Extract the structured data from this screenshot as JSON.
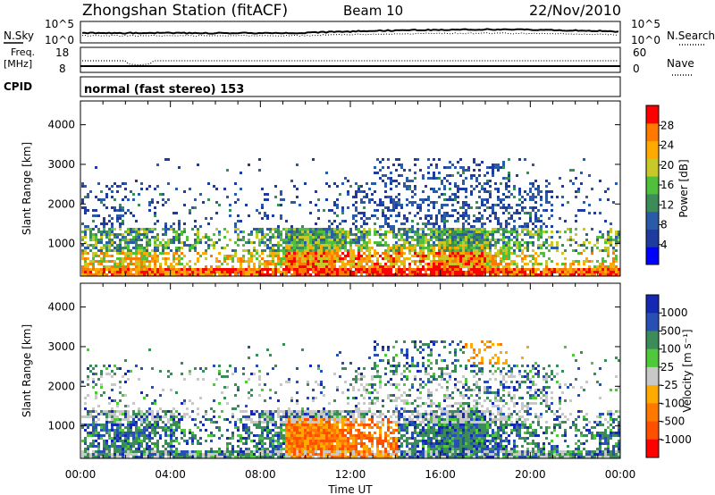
{
  "header": {
    "station": "Zhongshan Station (fitACF)",
    "beam": "Beam 10",
    "date": "22/Nov/2010"
  },
  "noise_panel": {
    "left_label": "N.Sky",
    "right_label": "N.Search",
    "left_ticks": [
      "10^5",
      "10^0"
    ],
    "right_ticks": [
      "10^5",
      "10^0"
    ]
  },
  "freq_panel": {
    "left_label": "Freq.",
    "left_unit": "[MHz]",
    "left_ticks": [
      "18",
      "8"
    ],
    "right_label": "Nave",
    "right_ticks": [
      "60",
      "0"
    ]
  },
  "cpid": {
    "label": "CPID",
    "value": "normal (fast stereo) 153"
  },
  "chart_data": [
    {
      "type": "heatmap",
      "title": "",
      "xlabel": "Time UT",
      "ylabel": "Slant Range [km]",
      "colorbar_label": "Power [dB]",
      "x_ticks": [
        "00:00",
        "04:00",
        "08:00",
        "12:00",
        "16:00",
        "20:00",
        "00:00"
      ],
      "y_ticks": [
        "1000",
        "2000",
        "3000",
        "4000"
      ],
      "ylim": [
        180,
        4600
      ],
      "colorbar_ticks": [
        "4",
        "8",
        "12",
        "16",
        "20",
        "24",
        "28"
      ],
      "colorbar_range": [
        0,
        32
      ],
      "colors": [
        "#0000ff",
        "#1e3ca0",
        "#2a5aa8",
        "#3c8c5a",
        "#50c03c",
        "#c8c828",
        "#ffaa00",
        "#ff7800",
        "#ff0000"
      ]
    },
    {
      "type": "heatmap",
      "title": "",
      "xlabel": "Time UT",
      "ylabel": "Slant Range [km]",
      "colorbar_label": "Velocity [m s⁻¹]",
      "x_ticks": [
        "00:00",
        "04:00",
        "08:00",
        "12:00",
        "16:00",
        "20:00",
        "00:00"
      ],
      "y_ticks": [
        "1000",
        "2000",
        "3000",
        "4000"
      ],
      "ylim": [
        180,
        4600
      ],
      "colorbar_ticks": [
        "1000",
        "500",
        "100",
        "25",
        "-25",
        "-100",
        "-500",
        "-1000"
      ],
      "colors": [
        "#1428b4",
        "#2850b4",
        "#3c8c5a",
        "#50c83c",
        "#c8c8c8",
        "#ffaa00",
        "#ff7800",
        "#ff5000",
        "#ff0000"
      ],
      "ground_scatter_color": "#c8c8c8"
    }
  ]
}
